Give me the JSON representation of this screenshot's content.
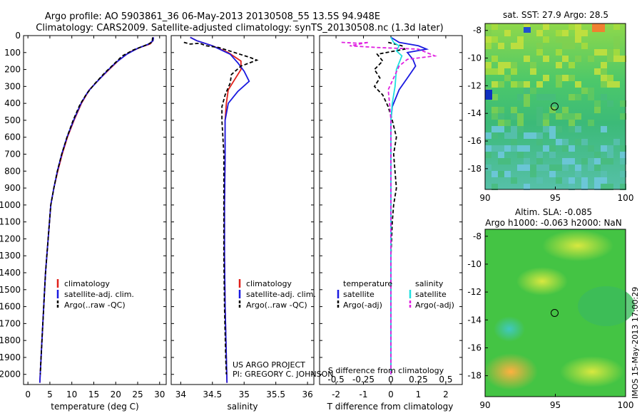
{
  "header": {
    "line1": "Argo profile: AO 5903861_36 06-May-2013 20130508_55 13.5S 94.948E",
    "line2": "Climatology: CARS2009. Satellite-adjusted climatology: synTS_20130508.nc (1.3d later)"
  },
  "colors": {
    "clim": "#e0201a",
    "sat": "#1a1ae0",
    "argo": "#000000",
    "sat_s": "#20e0e0",
    "argo_s": "#e020e0"
  },
  "chart_data": [
    {
      "type": "line",
      "panel": "temperature",
      "xlabel": "temperature (deg C)",
      "ylabel": "",
      "xlim": [
        -1,
        31.5
      ],
      "ylim": [
        2060,
        0
      ],
      "xticks": [
        0,
        5,
        10,
        15,
        20,
        25,
        30
      ],
      "yticks": [
        0,
        100,
        200,
        300,
        400,
        500,
        600,
        700,
        800,
        900,
        1000,
        1100,
        1200,
        1300,
        1400,
        1500,
        1600,
        1700,
        1800,
        1900,
        2000
      ],
      "legend": {
        "position": "lower-left",
        "entries": [
          "climatology",
          "satellite-adj. clim.",
          "Argo(..raw -QC)"
        ]
      },
      "series": [
        {
          "name": "climatology",
          "color": "clim",
          "dash": false,
          "points": [
            [
              28.6,
              10
            ],
            [
              28.5,
              30
            ],
            [
              27.8,
              50
            ],
            [
              25.5,
              70
            ],
            [
              23,
              100
            ],
            [
              20.5,
              150
            ],
            [
              18.5,
              200
            ],
            [
              16.2,
              260
            ],
            [
              14,
              320
            ],
            [
              12.2,
              400
            ],
            [
              10.5,
              500
            ],
            [
              9,
              600
            ],
            [
              7.8,
              700
            ],
            [
              6.8,
              800
            ],
            [
              5.9,
              900
            ],
            [
              5.2,
              1000
            ],
            [
              4.6,
              1200
            ],
            [
              4,
              1400
            ],
            [
              3.6,
              1600
            ],
            [
              3.2,
              1800
            ],
            [
              2.8,
              2000
            ],
            [
              2.7,
              2050
            ]
          ]
        },
        {
          "name": "satellite-adj. clim.",
          "color": "sat",
          "dash": false,
          "points": [
            [
              28.6,
              10
            ],
            [
              28.5,
              30
            ],
            [
              27.5,
              50
            ],
            [
              25,
              75
            ],
            [
              22.5,
              110
            ],
            [
              20,
              160
            ],
            [
              18,
              210
            ],
            [
              15.8,
              270
            ],
            [
              13.7,
              330
            ],
            [
              12.1,
              400
            ],
            [
              10.4,
              500
            ],
            [
              8.9,
              600
            ],
            [
              7.7,
              700
            ],
            [
              6.7,
              800
            ],
            [
              5.9,
              900
            ],
            [
              5.2,
              1000
            ],
            [
              4.6,
              1200
            ],
            [
              4,
              1400
            ],
            [
              3.6,
              1600
            ],
            [
              3.2,
              1800
            ],
            [
              2.8,
              2000
            ],
            [
              2.7,
              2050
            ]
          ]
        },
        {
          "name": "Argo(..raw -QC)",
          "color": "argo",
          "dash": true,
          "points": [
            [
              28.4,
              10
            ],
            [
              28.3,
              40
            ],
            [
              26.5,
              60
            ],
            [
              24,
              85
            ],
            [
              21.5,
              120
            ],
            [
              19.5,
              170
            ],
            [
              17.5,
              220
            ],
            [
              15,
              290
            ],
            [
              13.2,
              350
            ],
            [
              11.8,
              410
            ],
            [
              10.3,
              500
            ],
            [
              8.9,
              600
            ],
            [
              7.7,
              700
            ],
            [
              6.7,
              800
            ],
            [
              5.9,
              900
            ],
            [
              5.2,
              1000
            ],
            [
              4.6,
              1200
            ],
            [
              4,
              1400
            ],
            [
              3.6,
              1600
            ],
            [
              3.2,
              1800
            ],
            [
              2.8,
              2000
            ]
          ]
        }
      ]
    },
    {
      "type": "line",
      "panel": "salinity",
      "xlabel": "salinity",
      "xlim": [
        33.85,
        36.1
      ],
      "ylim": [
        2060,
        0
      ],
      "xticks": [
        34,
        34.5,
        35,
        35.5,
        36
      ],
      "xticklabels": [
        "34",
        "34.5",
        "35",
        "35.5",
        "36"
      ],
      "legend": {
        "position": "center-right",
        "entries": [
          "climatology",
          "satellite-adj. clim.",
          "Argo(..raw -QC)"
        ]
      },
      "annotation": [
        "US ARGO PROJECT",
        "PI: GREGORY C. JOHNSON"
      ],
      "series": [
        {
          "name": "climatology",
          "color": "clim",
          "dash": false,
          "points": [
            [
              34.15,
              10
            ],
            [
              34.25,
              30
            ],
            [
              34.5,
              60
            ],
            [
              34.75,
              100
            ],
            [
              34.95,
              150
            ],
            [
              34.95,
              200
            ],
            [
              34.85,
              260
            ],
            [
              34.75,
              320
            ],
            [
              34.72,
              400
            ],
            [
              34.7,
              500
            ],
            [
              34.7,
              700
            ],
            [
              34.69,
              1000
            ],
            [
              34.69,
              1300
            ],
            [
              34.7,
              1600
            ],
            [
              34.72,
              1900
            ],
            [
              34.73,
              2050
            ]
          ]
        },
        {
          "name": "satellite-adj. clim.",
          "color": "sat",
          "dash": false,
          "points": [
            [
              34.15,
              10
            ],
            [
              34.25,
              30
            ],
            [
              34.5,
              60
            ],
            [
              34.78,
              110
            ],
            [
              34.9,
              160
            ],
            [
              35.0,
              210
            ],
            [
              35.08,
              270
            ],
            [
              34.9,
              330
            ],
            [
              34.75,
              400
            ],
            [
              34.7,
              500
            ],
            [
              34.7,
              700
            ],
            [
              34.69,
              1000
            ],
            [
              34.69,
              1300
            ],
            [
              34.7,
              1600
            ],
            [
              34.72,
              1900
            ],
            [
              34.73,
              2050
            ]
          ]
        },
        {
          "name": "Argo(..raw -QC)",
          "color": "argo",
          "dash": true,
          "points": [
            [
              34.05,
              40
            ],
            [
              34.15,
              50
            ],
            [
              34.3,
              45
            ],
            [
              34.4,
              60
            ],
            [
              34.6,
              70
            ],
            [
              34.85,
              100
            ],
            [
              35.1,
              130
            ],
            [
              35.2,
              145
            ],
            [
              34.95,
              180
            ],
            [
              34.8,
              230
            ],
            [
              34.78,
              280
            ],
            [
              34.7,
              350
            ],
            [
              34.65,
              420
            ],
            [
              34.65,
              500
            ],
            [
              34.68,
              700
            ],
            [
              34.68,
              1000
            ],
            [
              34.68,
              1300
            ],
            [
              34.69,
              1600
            ],
            [
              34.71,
              1900
            ],
            [
              34.72,
              2000
            ]
          ]
        }
      ]
    },
    {
      "type": "line",
      "panel": "difference",
      "xlabel": "T difference from climatology",
      "xlim": [
        -2.6,
        2.6
      ],
      "ylim": [
        2060,
        0
      ],
      "xticks": [
        -2,
        -1,
        0,
        1,
        2
      ],
      "xticklabels": [
        "-2",
        "-1",
        "0",
        "1",
        "2"
      ],
      "secondary_xaxis": {
        "label": "S difference from climatology",
        "ticks": [
          -0.5,
          -0.25,
          0,
          0.25,
          0.5
        ],
        "ticklabels": [
          "-0.5",
          "-0.25",
          "0",
          "0.25",
          "0.5"
        ]
      },
      "legend": {
        "position": "center",
        "groups": [
          {
            "title": "temperature",
            "entries": [
              "satellite",
              "Argo(-adj)"
            ]
          },
          {
            "title": "salinity",
            "entries": [
              "satellite",
              "Argo(-adj)"
            ]
          }
        ]
      },
      "series": [
        {
          "name": "temperature satellite",
          "color": "sat",
          "dash": false,
          "points": [
            [
              0,
              10
            ],
            [
              0.3,
              40
            ],
            [
              1.0,
              60
            ],
            [
              1.3,
              80
            ],
            [
              0.6,
              100
            ],
            [
              0.8,
              140
            ],
            [
              0.9,
              180
            ],
            [
              0.6,
              250
            ],
            [
              0.3,
              320
            ],
            [
              0.05,
              420
            ],
            [
              0,
              500
            ],
            [
              0,
              800
            ],
            [
              0,
              1200
            ],
            [
              0,
              1600
            ],
            [
              0,
              2000
            ]
          ]
        },
        {
          "name": "temperature Argo(-adj)",
          "color": "argo",
          "dash": true,
          "points": [
            [
              -0.1,
              40
            ],
            [
              0.4,
              60
            ],
            [
              0.5,
              80
            ],
            [
              -0.5,
              110
            ],
            [
              -0.3,
              150
            ],
            [
              -0.6,
              200
            ],
            [
              -0.4,
              250
            ],
            [
              -0.6,
              300
            ],
            [
              -0.3,
              350
            ],
            [
              -0.1,
              420
            ],
            [
              0.05,
              500
            ],
            [
              0.2,
              600
            ],
            [
              0.1,
              700
            ],
            [
              0.2,
              900
            ],
            [
              0.1,
              1000
            ],
            [
              0.05,
              1100
            ],
            [
              0,
              1300
            ],
            [
              0,
              1600
            ],
            [
              0,
              2000
            ]
          ]
        },
        {
          "name": "salinity satellite",
          "color": "sat_s",
          "dash": false,
          "points": [
            [
              0,
              10
            ],
            [
              0.1,
              40
            ],
            [
              0.3,
              60
            ],
            [
              0.2,
              90
            ],
            [
              0.4,
              120
            ],
            [
              0.3,
              160
            ],
            [
              0.2,
              200
            ],
            [
              0.15,
              300
            ],
            [
              0.05,
              400
            ],
            [
              0,
              500
            ],
            [
              0,
              800
            ],
            [
              0,
              1200
            ],
            [
              0,
              1600
            ],
            [
              0,
              2000
            ]
          ]
        },
        {
          "name": "salinity Argo(-adj)",
          "color": "argo_s",
          "dash": true,
          "points": [
            [
              -1.8,
              40
            ],
            [
              -1.2,
              45
            ],
            [
              -0.8,
              40
            ],
            [
              -1.5,
              60
            ],
            [
              -0.5,
              70
            ],
            [
              1.0,
              80
            ],
            [
              1.6,
              120
            ],
            [
              0.6,
              140
            ],
            [
              0.3,
              180
            ],
            [
              0.1,
              250
            ],
            [
              -0.1,
              320
            ],
            [
              -0.05,
              400
            ],
            [
              0,
              500
            ],
            [
              0,
              800
            ],
            [
              0,
              1200
            ],
            [
              0,
              1600
            ],
            [
              0,
              2000
            ]
          ]
        }
      ]
    },
    {
      "type": "heatmap",
      "panel": "sst",
      "title": "sat. SST: 27.9 Argo: 28.5",
      "xlim": [
        90,
        100
      ],
      "ylim": [
        -19.5,
        -7.5
      ],
      "xticks": [
        90,
        95,
        100
      ],
      "yticks": [
        -8,
        -10,
        -12,
        -14,
        -16,
        -18
      ],
      "argo_position": [
        94.95,
        -13.5
      ]
    },
    {
      "type": "heatmap",
      "panel": "sla",
      "title_line1": "Altim. SLA: -0.085",
      "title_line2": "Argo h1000: -0.063 h2000: NaN",
      "xlim": [
        90,
        100
      ],
      "ylim": [
        -19.5,
        -7.5
      ],
      "xticks": [
        90,
        95,
        100
      ],
      "yticks": [
        -8,
        -10,
        -12,
        -14,
        -16,
        -18
      ],
      "argo_position": [
        94.95,
        -13.5
      ]
    }
  ],
  "side_stamp": "IMOS 15-May-2013 17:00:29"
}
